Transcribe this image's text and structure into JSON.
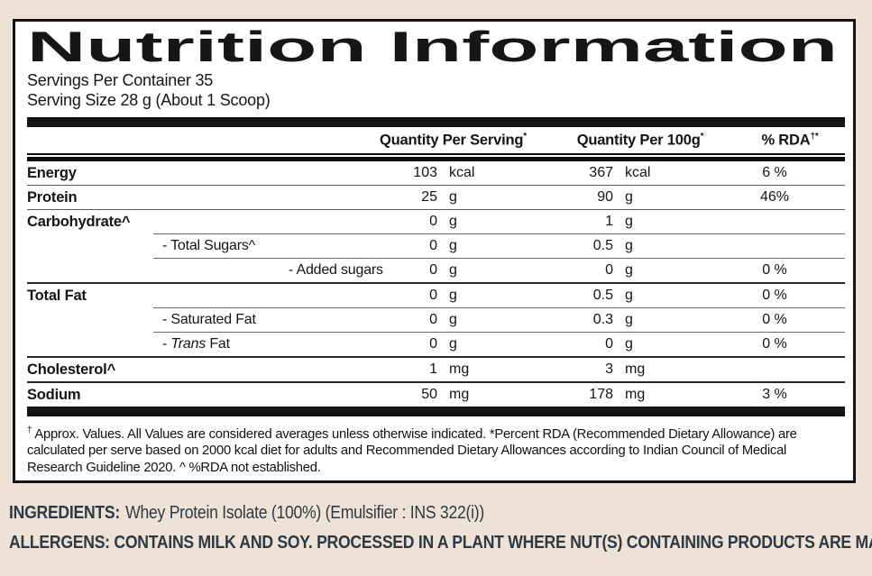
{
  "colors": {
    "background": "#EEE2D6",
    "panel": "#FFFFFF",
    "ink": "#141414",
    "bottom_text": "#2C3A46"
  },
  "header": {
    "title": "Nutrition Information",
    "servings_line": "Servings Per Container 35",
    "serving_size_line": "Serving Size 28 g (About 1 Scoop)"
  },
  "table": {
    "headers": {
      "serving": "Quantity Per Serving",
      "serving_sup": "*",
      "per100g": "Quantity Per 100g",
      "per100g_sup": "*",
      "rda": "% RDA",
      "rda_sup": "†*"
    },
    "rows": [
      {
        "label": "Energy",
        "q1": "103",
        "u1": "kcal",
        "q2": "367",
        "u2": "kcal",
        "rda": "6 %"
      },
      {
        "label": "Protein",
        "q1": "25",
        "u1": "g",
        "q2": "90",
        "u2": "g",
        "rda": "46%"
      },
      {
        "label": "Carbohydrate^",
        "q1": "0",
        "u1": "g",
        "q2": "1",
        "u2": "g",
        "rda": ""
      },
      {
        "label": "- Total Sugars^",
        "q1": "0",
        "u1": "g",
        "q2": "0.5",
        "u2": "g",
        "rda": ""
      },
      {
        "label": "- Added sugars",
        "q1": "0",
        "u1": "g",
        "q2": "0",
        "u2": "g",
        "rda": "0 %"
      },
      {
        "label": "Total Fat",
        "q1": "0",
        "u1": "g",
        "q2": "0.5",
        "u2": "g",
        "rda": "0 %"
      },
      {
        "label": "- Saturated Fat",
        "q1": "0",
        "u1": "g",
        "q2": "0.3",
        "u2": "g",
        "rda": "0 %"
      },
      {
        "label_pre": "- ",
        "label_italic": "Trans",
        "label_post": " Fat",
        "q1": "0",
        "u1": "g",
        "q2": "0",
        "u2": "g",
        "rda": "0 %"
      },
      {
        "label": "Cholesterol^",
        "q1": "1",
        "u1": "mg",
        "q2": "3",
        "u2": "mg",
        "rda": ""
      },
      {
        "label": "Sodium",
        "q1": "50",
        "u1": "mg",
        "q2": "178",
        "u2": "mg",
        "rda": "3 %"
      }
    ],
    "footnote": {
      "sup": "†",
      "text": " Approx. Values. All Values are considered averages unless otherwise indicated. *Percent RDA (Recommended Dietary Allowance) are calculated per serve based on 2000 kcal diet for adults and Recommended Dietary Allowances according to Indian Council of Medical Research Guideline 2020. ^ %RDA not established."
    }
  },
  "ingredients": {
    "label": "INGREDIENTS:",
    "text": "Whey Protein Isolate (100%) (Emulsifier : INS 322(i))"
  },
  "allergens": {
    "text": "ALLERGENS: CONTAINS MILK AND SOY. PROCESSED IN A PLANT WHERE NUT(S) CONTAINING PRODUCTS ARE MANUFACTURED"
  }
}
